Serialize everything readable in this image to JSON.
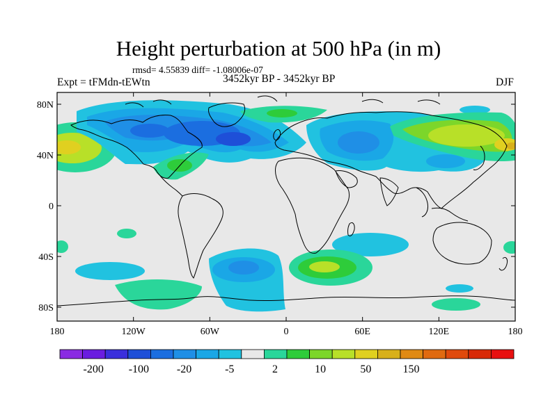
{
  "title": "Height perturbation at 500 hPa (in m)",
  "stats": "rmsd= 4.55839 diff= -1.08006e-07",
  "left_label": "Expt = tFMdn-tEWtn",
  "center_label": "3452kyr BP - 3452kyr BP",
  "right_label": "DJF",
  "lat_labels": [
    "80N",
    "40N",
    "0",
    "40S",
    "80S"
  ],
  "lon_labels": [
    "180",
    "120W",
    "60W",
    "0",
    "60E",
    "120E",
    "180"
  ],
  "colorbar": {
    "labels": [
      "-200",
      "-100",
      "-20",
      "-5",
      "2",
      "10",
      "50",
      "150"
    ],
    "colors": [
      "#8a2be2",
      "#6a1de0",
      "#3a2fdc",
      "#1e4fd8",
      "#1b6ee0",
      "#1f8fe6",
      "#1aa7e6",
      "#21c2e0",
      "#e8e8e8",
      "#2ad69a",
      "#2ecc3a",
      "#7cd62a",
      "#b8e028",
      "#e0d020",
      "#d8b01a",
      "#e08a14",
      "#e06a10",
      "#e04a0c",
      "#d82a08",
      "#e81010"
    ]
  },
  "colors": {
    "background": "#e8e8e8",
    "land_outline": "#000000"
  }
}
